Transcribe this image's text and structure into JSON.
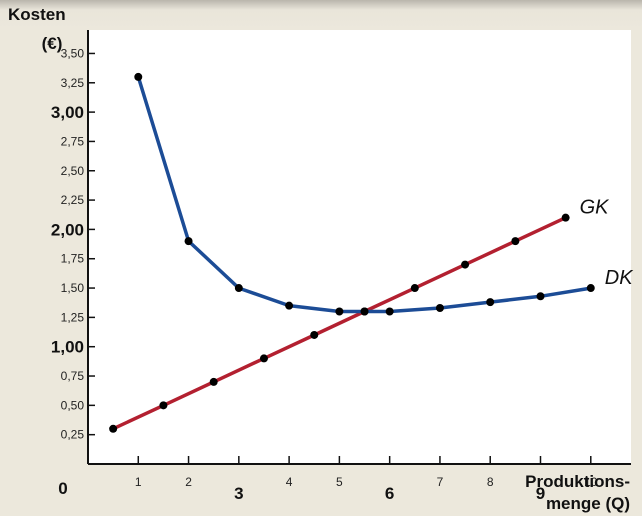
{
  "chart_data": {
    "type": "line",
    "title": "",
    "ylabel_line1": "Kosten",
    "ylabel_line2": "(€)",
    "xlabel_line1": "Produktions-",
    "xlabel_line2": "menge (Q)",
    "origin_label": "0",
    "ylim": [
      0,
      3.7
    ],
    "xlim": [
      0,
      10.8
    ],
    "y_ticks": [
      {
        "value": 0.25,
        "label": "0,25",
        "major": false
      },
      {
        "value": 0.5,
        "label": "0,50",
        "major": false
      },
      {
        "value": 0.75,
        "label": "0,75",
        "major": false
      },
      {
        "value": 1.0,
        "label": "1,00",
        "major": true
      },
      {
        "value": 1.25,
        "label": "1,25",
        "major": false
      },
      {
        "value": 1.5,
        "label": "1,50",
        "major": false
      },
      {
        "value": 1.75,
        "label": "1,75",
        "major": false
      },
      {
        "value": 2.0,
        "label": "2,00",
        "major": true
      },
      {
        "value": 2.25,
        "label": "2,25",
        "major": false
      },
      {
        "value": 2.5,
        "label": "2,50",
        "major": false
      },
      {
        "value": 2.75,
        "label": "2,75",
        "major": false
      },
      {
        "value": 3.0,
        "label": "3,00",
        "major": true
      },
      {
        "value": 3.25,
        "label": "3,25",
        "major": false
      },
      {
        "value": 3.5,
        "label": "3,50",
        "major": false
      }
    ],
    "x_ticks": [
      {
        "value": 1,
        "label": "1",
        "major": false
      },
      {
        "value": 2,
        "label": "2",
        "major": false
      },
      {
        "value": 3,
        "label": "3",
        "major": true
      },
      {
        "value": 4,
        "label": "4",
        "major": false
      },
      {
        "value": 5,
        "label": "5",
        "major": false
      },
      {
        "value": 6,
        "label": "6",
        "major": true
      },
      {
        "value": 7,
        "label": "7",
        "major": false
      },
      {
        "value": 8,
        "label": "8",
        "major": false
      },
      {
        "value": 9,
        "label": "9",
        "major": true
      },
      {
        "value": 10,
        "label": "10",
        "major": false
      }
    ],
    "series": [
      {
        "name": "GK",
        "color": "#b32030",
        "points": [
          [
            0.5,
            0.3
          ],
          [
            1.5,
            0.5
          ],
          [
            2.5,
            0.7
          ],
          [
            3.5,
            0.9
          ],
          [
            4.5,
            1.1
          ],
          [
            5.5,
            1.3
          ],
          [
            6.5,
            1.5
          ],
          [
            7.5,
            1.7
          ],
          [
            8.5,
            1.9
          ],
          [
            9.5,
            2.1
          ]
        ]
      },
      {
        "name": "DK",
        "color": "#1c4c96",
        "points": [
          [
            1,
            3.3
          ],
          [
            2,
            1.9
          ],
          [
            3,
            1.5
          ],
          [
            4,
            1.35
          ],
          [
            5,
            1.3
          ],
          [
            5.5,
            1.3
          ],
          [
            6,
            1.3
          ],
          [
            7,
            1.33
          ],
          [
            8,
            1.38
          ],
          [
            9,
            1.43
          ],
          [
            10,
            1.5
          ]
        ]
      }
    ]
  }
}
